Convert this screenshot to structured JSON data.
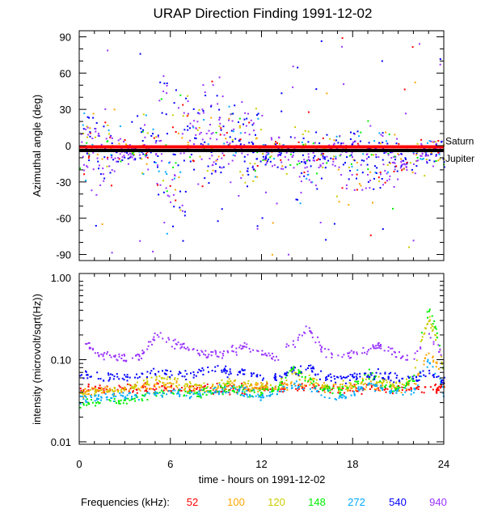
{
  "chart_data": [
    {
      "type": "scatter",
      "title": "URAP Direction Finding  1991-12-02",
      "ylabel": "Azimuthal angle (deg)",
      "xlim": [
        0,
        24
      ],
      "ylim": [
        -95,
        95
      ],
      "yticks": [
        "90",
        "60",
        "30",
        "0",
        "-30",
        "-60",
        "-90"
      ],
      "ytick_values": [
        90,
        60,
        30,
        0,
        -30,
        -60,
        -90
      ],
      "reference_lines": [
        {
          "label": "Saturn",
          "value": -1,
          "color": "#ff0000"
        },
        {
          "label": "Jupiter",
          "value": -4,
          "color": "#000000"
        }
      ],
      "hourly_azimuth_mean": [
        0,
        -5,
        -5,
        -5,
        0,
        -5,
        -10,
        5,
        0,
        5,
        5,
        0,
        -5,
        -5,
        -10,
        -10,
        -5,
        -5,
        -5,
        -10,
        -10,
        -10,
        -5,
        -5
      ],
      "hourly_azimuth_spread": [
        25,
        20,
        10,
        5,
        15,
        45,
        40,
        20,
        30,
        25,
        20,
        35,
        10,
        10,
        25,
        25,
        10,
        15,
        20,
        20,
        15,
        10,
        10,
        10
      ]
    },
    {
      "type": "scatter",
      "xlabel": "time - hours on 1991-12-02",
      "ylabel": "intensity (microvolt/sqrt(Hz))",
      "yscale": "log",
      "ylim": [
        0.01,
        1.0
      ],
      "yticks": [
        "1.00",
        "0.10",
        "0.01"
      ],
      "ytick_values": [
        1.0,
        0.1,
        0.01
      ],
      "xticks": [
        "0",
        "6",
        "12",
        "18",
        "24"
      ],
      "xtick_values": [
        0,
        6,
        12,
        18,
        24
      ],
      "xlim": [
        0,
        24
      ],
      "legend_title": "Frequencies (kHz):",
      "legend_placement": "bottom",
      "series": [
        {
          "name": "52",
          "color": "#ff0000",
          "hourly": [
            0.045,
            0.045,
            0.045,
            0.046,
            0.045,
            0.046,
            0.045,
            0.044,
            0.046,
            0.045,
            0.046,
            0.045,
            0.045,
            0.046,
            0.047,
            0.046,
            0.045,
            0.044,
            0.045,
            0.046,
            0.045,
            0.045,
            0.046,
            0.045,
            0.045
          ]
        },
        {
          "name": "100",
          "color": "#ffa500",
          "hourly": [
            0.04,
            0.042,
            0.044,
            0.045,
            0.046,
            0.05,
            0.05,
            0.045,
            0.047,
            0.046,
            0.05,
            0.048,
            0.046,
            0.046,
            0.05,
            0.055,
            0.048,
            0.046,
            0.046,
            0.05,
            0.048,
            0.046,
            0.05,
            0.12,
            0.05
          ]
        },
        {
          "name": "120",
          "color": "#cccc00",
          "hourly": [
            0.042,
            0.042,
            0.043,
            0.045,
            0.05,
            0.06,
            0.055,
            0.05,
            0.05,
            0.05,
            0.055,
            0.05,
            0.048,
            0.05,
            0.07,
            0.065,
            0.05,
            0.048,
            0.05,
            0.06,
            0.055,
            0.05,
            0.06,
            0.3,
            0.06
          ]
        },
        {
          "name": "148",
          "color": "#00ee00",
          "hourly": [
            0.03,
            0.031,
            0.032,
            0.032,
            0.034,
            0.04,
            0.042,
            0.04,
            0.04,
            0.042,
            0.045,
            0.042,
            0.04,
            0.045,
            0.08,
            0.06,
            0.045,
            0.042,
            0.05,
            0.07,
            0.05,
            0.045,
            0.06,
            0.4,
            0.04
          ]
        },
        {
          "name": "272",
          "color": "#00aaff",
          "hourly": [
            0.034,
            0.035,
            0.036,
            0.036,
            0.036,
            0.04,
            0.042,
            0.038,
            0.04,
            0.042,
            0.045,
            0.04,
            0.036,
            0.038,
            0.05,
            0.048,
            0.04,
            0.036,
            0.04,
            0.05,
            0.045,
            0.04,
            0.042,
            0.1,
            0.036
          ]
        },
        {
          "name": "540",
          "color": "#0000ff",
          "hourly": [
            0.065,
            0.065,
            0.063,
            0.062,
            0.065,
            0.075,
            0.07,
            0.065,
            0.075,
            0.08,
            0.07,
            0.075,
            0.06,
            0.062,
            0.075,
            0.08,
            0.065,
            0.06,
            0.062,
            0.07,
            0.065,
            0.06,
            0.062,
            0.07,
            0.055
          ]
        },
        {
          "name": "940",
          "color": "#9933ff",
          "hourly": [
            0.2,
            0.12,
            0.11,
            0.105,
            0.11,
            0.2,
            0.17,
            0.14,
            0.12,
            0.12,
            0.13,
            0.15,
            0.12,
            0.11,
            0.15,
            0.25,
            0.13,
            0.11,
            0.12,
            0.14,
            0.15,
            0.11,
            0.11,
            0.2,
            0.1
          ]
        }
      ]
    }
  ]
}
